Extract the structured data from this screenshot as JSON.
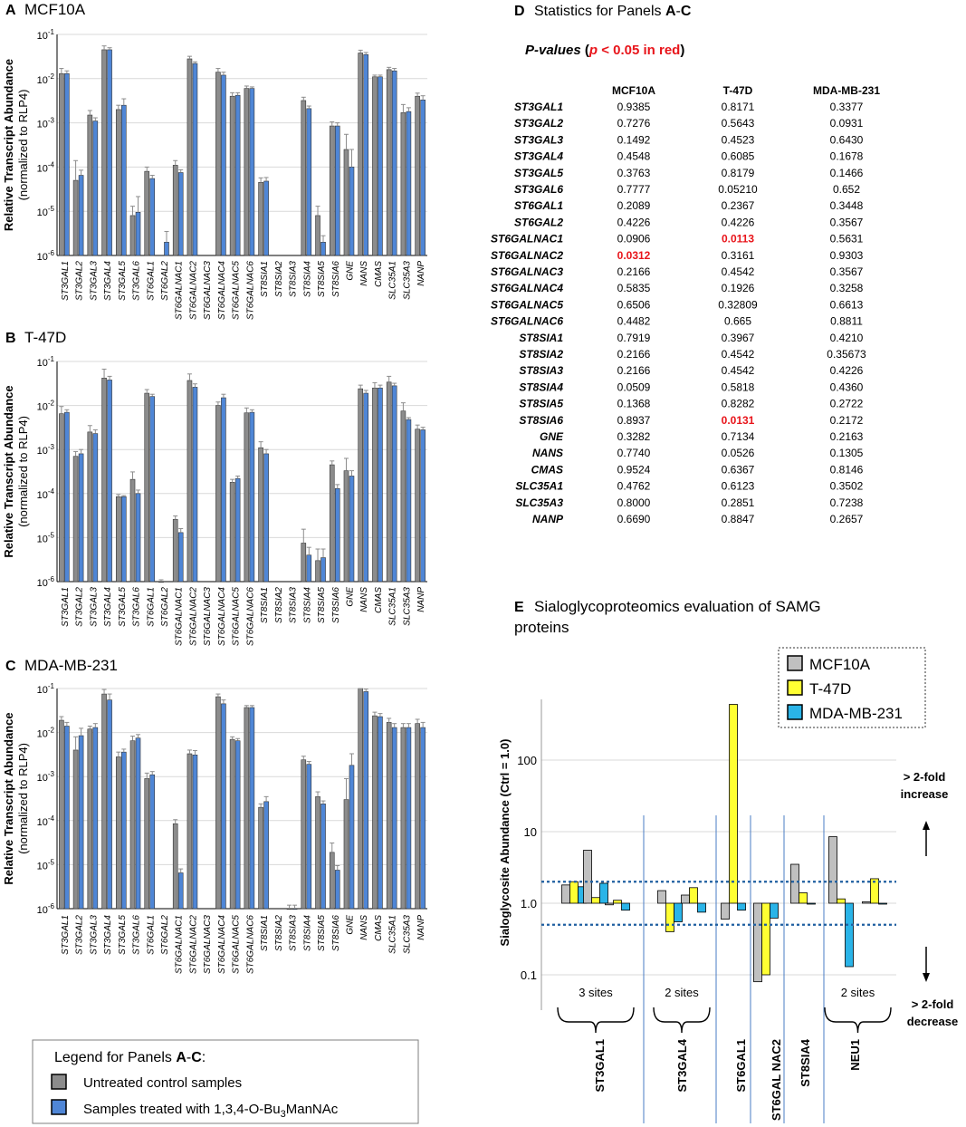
{
  "colors": {
    "control": "#8c8c8c",
    "treated": "#4f86d6",
    "mcf10a": "#c0c0c0",
    "t47d": "#ffff33",
    "mdamb231": "#2ab4e8",
    "significant": "#e8141a",
    "grid": "#d9d9d9",
    "threshold": "#1f5fa0",
    "divider": "#4a7cc4"
  },
  "genes": [
    "ST3GAL1",
    "ST3GAL2",
    "ST3GAL3",
    "ST3GAL4",
    "ST3GAL5",
    "ST3GAL6",
    "ST6GAL1",
    "ST6GAL2",
    "ST6GALNAC1",
    "ST6GALNAC2",
    "ST6GALNAC3",
    "ST6GALNAC4",
    "ST6GALNAC5",
    "ST6GALNAC6",
    "ST8SIA1",
    "ST8SIA2",
    "ST8SIA3",
    "ST8SIA4",
    "ST8SIA5",
    "ST8SIA6",
    "GNE",
    "NANS",
    "CMAS",
    "SLC35A1",
    "SLC35A3",
    "NANP"
  ],
  "transcript_panels": {
    "ylabel": "Relative Transcript Abundance",
    "ylabel2": "(normalized to RLP4)",
    "yticks": [
      {
        "base": "10",
        "exp": "-1"
      },
      {
        "base": "10",
        "exp": "-2"
      },
      {
        "base": "10",
        "exp": "-3"
      },
      {
        "base": "10",
        "exp": "-4"
      },
      {
        "base": "10",
        "exp": "-5"
      },
      {
        "base": "10",
        "exp": "-6"
      }
    ]
  },
  "chart_data": [
    {
      "type": "bar",
      "scale": "log",
      "panel_letter": "A",
      "title": "MCF10A",
      "ylim": [
        1e-06,
        0.1
      ],
      "series": [
        {
          "name": "Untreated control samples",
          "values": [
            0.013,
            5e-05,
            0.0015,
            0.045,
            0.002,
            8e-06,
            8e-05,
            0,
            0.00011,
            0.028,
            0,
            0.014,
            0.004,
            0.006,
            4.5e-05,
            0,
            0,
            0.0032,
            8e-06,
            0.00085,
            0.00025,
            0.038,
            0.011,
            0.016,
            0.0017,
            0.004
          ],
          "errors": [
            0.004,
            9e-05,
            0.0004,
            0.01,
            0.0005,
            5e-06,
            2e-05,
            0,
            3e-05,
            0.004,
            0,
            0.003,
            0.0008,
            0.0008,
            1.2e-05,
            0,
            0,
            0.0006,
            5e-06,
            0.0002,
            0.0003,
            0.006,
            0.001,
            0.002,
            0.0009,
            0.0007
          ]
        },
        {
          "name": "Samples treated with 1,3,4-O-Bu3ManNAc",
          "values": [
            0.013,
            6.5e-05,
            0.0011,
            0.045,
            0.0025,
            9.5e-06,
            5.5e-05,
            2e-06,
            7.5e-05,
            0.022,
            0,
            0.012,
            0.0042,
            0.006,
            4.8e-05,
            0,
            0,
            0.0021,
            2e-06,
            0.00085,
            0.0001,
            0.035,
            0.011,
            0.015,
            0.0018,
            0.0033
          ],
          "errors": [
            0.002,
            2e-05,
            0.0002,
            0.005,
            0.001,
            1.2e-05,
            1e-05,
            1.5e-06,
            1.2e-05,
            0.002,
            0,
            0.002,
            0.0006,
            0.0005,
            1e-05,
            0,
            0,
            0.0003,
            8e-07,
            0.00015,
            0.00015,
            0.004,
            0.001,
            0.002,
            0.0004,
            0.0008
          ]
        }
      ]
    },
    {
      "type": "bar",
      "scale": "log",
      "panel_letter": "B",
      "title": "T-47D",
      "ylim": [
        1e-06,
        0.1
      ],
      "series": [
        {
          "name": "Untreated control samples",
          "values": [
            0.0065,
            0.0007,
            0.0025,
            0.042,
            8.5e-05,
            0.00021,
            0.019,
            1e-06,
            2.6e-05,
            0.037,
            0,
            0.01,
            0.00018,
            0.0068,
            0.0011,
            0,
            0,
            7.5e-06,
            3e-06,
            0.00045,
            0.00033,
            0.024,
            0.025,
            0.034,
            0.0075,
            0.0029
          ],
          "errors": [
            0.003,
            0.0002,
            0.001,
            0.025,
            1e-05,
            0.0001,
            0.004,
            1e-07,
            5e-06,
            0.015,
            0,
            0.002,
            3e-05,
            0.002,
            0.0004,
            0,
            0,
            8e-06,
            2.5e-06,
            0.0001,
            0.0003,
            0.005,
            0.008,
            0.012,
            0.004,
            0.0007
          ]
        },
        {
          "name": "Samples treated with 1,3,4-O-Bu3ManNAc",
          "values": [
            0.007,
            0.0008,
            0.0023,
            0.038,
            8.5e-05,
            0.0001,
            0.016,
            0,
            1.3e-05,
            0.026,
            0,
            0.015,
            0.00022,
            0.007,
            0.0008,
            0,
            0,
            4e-06,
            3.5e-06,
            0.00013,
            0.00025,
            0.019,
            0.025,
            0.028,
            0.0048,
            0.0028
          ],
          "errors": [
            0.001,
            0.0002,
            0.0005,
            0.008,
            5e-06,
            2e-05,
            0.002,
            0,
            3e-06,
            0.005,
            0,
            0.003,
            3e-05,
            0.001,
            0.0002,
            0,
            0,
            2e-06,
            2e-06,
            3e-05,
            8e-05,
            0.003,
            0.004,
            0.004,
            0.0005,
            0.0004
          ]
        }
      ]
    },
    {
      "type": "bar",
      "scale": "log",
      "panel_letter": "C",
      "title": "MDA-MB-231",
      "ylim": [
        1e-06,
        0.1
      ],
      "series": [
        {
          "name": "Untreated control samples",
          "values": [
            0.019,
            0.004,
            0.012,
            0.075,
            0.0028,
            0.0065,
            0.0009,
            0,
            8.5e-05,
            0.0033,
            0,
            0.065,
            0.007,
            0.037,
            0.0002,
            0,
            1e-06,
            0.0024,
            0.00035,
            1.9e-05,
            0.0003,
            0.11,
            0.024,
            0.017,
            0.013,
            0.016
          ],
          "errors": [
            0.004,
            0.004,
            0.002,
            0.02,
            0.0008,
            0.0018,
            0.0003,
            0,
            2e-05,
            0.0007,
            0,
            0.01,
            0.001,
            0.004,
            4e-05,
            0,
            2e-07,
            0.0005,
            0.0001,
            1.2e-05,
            0.0006,
            0.02,
            0.005,
            0.004,
            0.003,
            0.004
          ]
        },
        {
          "name": "Samples treated with 1,3,4-O-Bu3ManNAc",
          "values": [
            0.014,
            0.0085,
            0.013,
            0.055,
            0.0036,
            0.0075,
            0.0011,
            0,
            6.5e-06,
            0.0031,
            0,
            0.045,
            0.0065,
            0.037,
            0.00027,
            0,
            1e-06,
            0.0019,
            0.00024,
            7.5e-06,
            0.0018,
            0.085,
            0.023,
            0.013,
            0.013,
            0.013
          ],
          "errors": [
            0.003,
            0.004,
            0.003,
            0.02,
            0.0006,
            0.0015,
            0.0002,
            0,
            1.5e-06,
            0.0008,
            0,
            0.01,
            0.0008,
            0.004,
            8e-05,
            0,
            2e-07,
            0.0003,
            4e-05,
            2e-06,
            0.0015,
            0.012,
            0.004,
            0.003,
            0.003,
            0.004
          ]
        }
      ]
    },
    {
      "type": "bar",
      "scale": "log",
      "panel_letter": "E",
      "title": "Sialoglycoproteomics evaluation of SAMG proteins",
      "ylabel": "Sialoglycosite Abundance (Ctrl = 1.0)",
      "ylim": [
        0.1,
        500
      ],
      "thresholds": [
        2.0,
        0.5
      ],
      "series_names": [
        "MCF10A",
        "T-47D",
        "MDA-MB-231"
      ],
      "groups": [
        {
          "label": "ST3GAL1",
          "sites": "3 sites",
          "sites_values": [
            [
              1.8,
              2.0,
              1.7
            ],
            [
              5.5,
              1.2,
              1.9
            ],
            [
              0.95,
              1.1,
              0.8
            ]
          ]
        },
        {
          "label": "ST3GAL4",
          "sites": "2 sites",
          "sites_values": [
            [
              1.5,
              0.4,
              0.55
            ],
            [
              1.3,
              1.65,
              0.75
            ]
          ]
        },
        {
          "label": "ST6GAL1",
          "sites": "",
          "sites_values": [
            [
              0.6,
              600,
              0.8
            ]
          ]
        },
        {
          "label": "ST6GAL NAC2",
          "sites": "",
          "sites_values": [
            [
              0.08,
              0.1,
              0.62
            ]
          ]
        },
        {
          "label": "ST8SIA4",
          "sites": "",
          "sites_values": [
            [
              3.5,
              1.4,
              1.0
            ]
          ]
        },
        {
          "label": "NEU1",
          "sites": "2 sites",
          "sites_values": [
            [
              8.5,
              1.15,
              0.13
            ],
            [
              1.05,
              2.2,
              1.0
            ]
          ]
        }
      ]
    },
    {
      "type": "table",
      "panel_letter": "D",
      "title": "Statistics for Panels A-C",
      "columns": [
        "MCF10A",
        "T-47D",
        "MDA-MB-231"
      ],
      "rows": [
        {
          "gene": "ST3GAL1",
          "values": [
            "0.9385",
            "0.8171",
            "0.3377"
          ]
        },
        {
          "gene": "ST3GAL2",
          "values": [
            "0.7276",
            "0.5643",
            "0.0931"
          ]
        },
        {
          "gene": "ST3GAL3",
          "values": [
            "0.1492",
            "0.4523",
            "0.6430"
          ]
        },
        {
          "gene": "ST3GAL4",
          "values": [
            "0.4548",
            "0.6085",
            "0.1678"
          ]
        },
        {
          "gene": "ST3GAL5",
          "values": [
            "0.3763",
            "0.8179",
            "0.1466"
          ]
        },
        {
          "gene": "ST3GAL6",
          "values": [
            "0.7777",
            "0.05210",
            "0.652"
          ]
        },
        {
          "gene": "ST6GAL1",
          "values": [
            "0.2089",
            "0.2367",
            "0.3448"
          ]
        },
        {
          "gene": "ST6GAL2",
          "values": [
            "0.4226",
            "0.4226",
            "0.3567"
          ]
        },
        {
          "gene": "ST6GALNAC1",
          "values": [
            "0.0906",
            "0.0113",
            "0.5631"
          ]
        },
        {
          "gene": "ST6GALNAC2",
          "values": [
            "0.0312",
            "0.3161",
            "0.9303"
          ]
        },
        {
          "gene": "ST6GALNAC3",
          "values": [
            "0.2166",
            "0.4542",
            "0.3567"
          ]
        },
        {
          "gene": "ST6GALNAC4",
          "values": [
            "0.5835",
            "0.1926",
            "0.3258"
          ]
        },
        {
          "gene": "ST6GALNAC5",
          "values": [
            "0.6506",
            "0.32809",
            "0.6613"
          ]
        },
        {
          "gene": "ST6GALNAC6",
          "values": [
            "0.4482",
            "0.665",
            "0.8811"
          ]
        },
        {
          "gene": "ST8SIA1",
          "values": [
            "0.7919",
            "0.3967",
            "0.4210"
          ]
        },
        {
          "gene": "ST8SIA2",
          "values": [
            "0.2166",
            "0.4542",
            "0.35673"
          ]
        },
        {
          "gene": "ST8SIA3",
          "values": [
            "0.2166",
            "0.4542",
            "0.4226"
          ]
        },
        {
          "gene": "ST8SIA4",
          "values": [
            "0.0509",
            "0.5818",
            "0.4360"
          ]
        },
        {
          "gene": "ST8SIA5",
          "values": [
            "0.1368",
            "0.8282",
            "0.2722"
          ]
        },
        {
          "gene": "ST8SIA6",
          "values": [
            "0.8937",
            "0.0131",
            "0.2172"
          ]
        },
        {
          "gene": "GNE",
          "values": [
            "0.3282",
            "0.7134",
            "0.2163"
          ]
        },
        {
          "gene": "NANS",
          "values": [
            "0.7740",
            "0.0526",
            "0.1305"
          ]
        },
        {
          "gene": "CMAS",
          "values": [
            "0.9524",
            "0.6367",
            "0.8146"
          ]
        },
        {
          "gene": "SLC35A1",
          "values": [
            "0.4762",
            "0.6123",
            "0.3502"
          ]
        },
        {
          "gene": "SLC35A3",
          "values": [
            "0.8000",
            "0.2851",
            "0.7238"
          ]
        },
        {
          "gene": "NANP",
          "values": [
            "0.6690",
            "0.8847",
            "0.2657"
          ]
        }
      ],
      "significant_threshold": 0.05
    }
  ],
  "panel_d": {
    "letter": "D",
    "title_pre": "Statistics for Panels ",
    "title_a": "A",
    "title_dash": "-",
    "title_c": "C",
    "pv_title": "P-values",
    "pv_open": " (",
    "pv_p": "p",
    "pv_rest": " < 0.05 in red",
    "pv_close": ")"
  },
  "panel_e": {
    "letter": "E",
    "title_line1": "Sialoglycoproteomics evaluation of SAMG",
    "title_line2": "proteins",
    "yticks": [
      "0.1",
      "1.0",
      "10",
      "100"
    ],
    "increase_line1": "> 2-fold",
    "increase_line2": "increase",
    "decrease_line1": "> 2-fold",
    "decrease_line2": "decrease"
  },
  "legend_ac": {
    "title_pre": "Legend for Panels ",
    "title_a": "A",
    "title_dash": "-",
    "title_c": "C",
    "title_colon": ":",
    "item1": "Untreated control samples",
    "item2_pre": "Samples treated with 1,3,4-O-Bu",
    "item2_sub": "3",
    "item2_post": "ManNAc"
  }
}
